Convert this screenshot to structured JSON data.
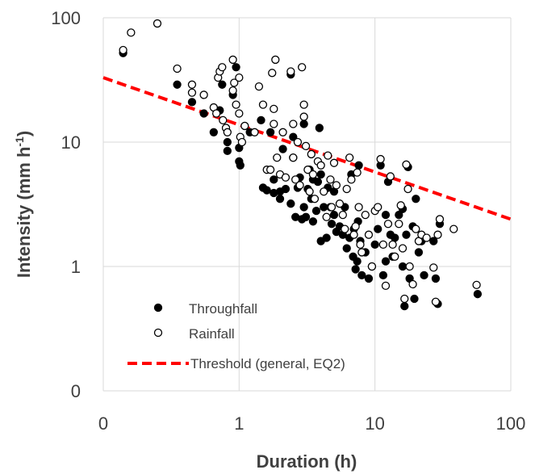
{
  "chart_data": {
    "type": "scatter",
    "xscale": "log",
    "yscale": "log",
    "xlim": [
      0.1,
      100
    ],
    "ylim": [
      0.1,
      100
    ],
    "xticks": [
      0.1,
      1,
      10,
      100
    ],
    "yticks": [
      0.1,
      1,
      10,
      100
    ],
    "xtick_labels": [
      "0",
      "1",
      "10",
      "100"
    ],
    "ytick_labels": [
      "0",
      "1",
      "10",
      "100"
    ],
    "xlabel": "Duration (h)",
    "ylabel": {
      "base": "Intensity (mm h",
      "sup": "-1",
      "end": ")"
    },
    "grid": "major, both axes",
    "legend_position": "lower-left",
    "colors": {
      "throughfall": "#000000",
      "rainfall_edge": "#000000",
      "rainfall_fill": "#ffffff",
      "threshold": "#ff0000",
      "grid": "#d9d9d9",
      "text": "#404040"
    },
    "series": [
      {
        "name": "Throughfall",
        "marker": "filled-circle",
        "points": [
          [
            0.14,
            52
          ],
          [
            0.35,
            29
          ],
          [
            0.45,
            21
          ],
          [
            0.55,
            17
          ],
          [
            0.65,
            12
          ],
          [
            0.72,
            18
          ],
          [
            0.75,
            29
          ],
          [
            0.82,
            8.5
          ],
          [
            0.82,
            10
          ],
          [
            0.9,
            24
          ],
          [
            0.95,
            40
          ],
          [
            1.0,
            9
          ],
          [
            1.0,
            7
          ],
          [
            1.02,
            6.5
          ],
          [
            1.2,
            12
          ],
          [
            1.45,
            15
          ],
          [
            1.5,
            4.3
          ],
          [
            1.6,
            4.1
          ],
          [
            1.7,
            12
          ],
          [
            1.8,
            5
          ],
          [
            1.8,
            3.9
          ],
          [
            2.0,
            3.5
          ],
          [
            2.0,
            4.0
          ],
          [
            2.1,
            8.8
          ],
          [
            2.2,
            4.2
          ],
          [
            2.4,
            3.2
          ],
          [
            2.4,
            35
          ],
          [
            2.5,
            11
          ],
          [
            2.5,
            7.5
          ],
          [
            2.6,
            2.5
          ],
          [
            2.7,
            4.3
          ],
          [
            2.8,
            5.2
          ],
          [
            2.9,
            2.4
          ],
          [
            3.0,
            3.0
          ],
          [
            3.0,
            14
          ],
          [
            3.1,
            2.5
          ],
          [
            3.2,
            4.2
          ],
          [
            3.3,
            6.0
          ],
          [
            3.4,
            3.5
          ],
          [
            3.5,
            2.3
          ],
          [
            3.5,
            5.0
          ],
          [
            3.7,
            2.8
          ],
          [
            3.8,
            4.8
          ],
          [
            3.9,
            13
          ],
          [
            4.0,
            1.6
          ],
          [
            4.0,
            5.5
          ],
          [
            4.2,
            3.0
          ],
          [
            4.4,
            1.7
          ],
          [
            4.5,
            4.3
          ],
          [
            4.7,
            3.0
          ],
          [
            4.8,
            2.2
          ],
          [
            5.0,
            2.6
          ],
          [
            5.0,
            4.0
          ],
          [
            5.2,
            1.9
          ],
          [
            5.5,
            2.1
          ],
          [
            5.8,
            1.8
          ],
          [
            6.0,
            3.0
          ],
          [
            6.2,
            1.4
          ],
          [
            6.5,
            1.7
          ],
          [
            6.7,
            5.5
          ],
          [
            6.9,
            1.2
          ],
          [
            7.0,
            2.0
          ],
          [
            7.2,
            0.95
          ],
          [
            7.4,
            1.1
          ],
          [
            7.5,
            2.3
          ],
          [
            7.6,
            6.5
          ],
          [
            7.8,
            1.6
          ],
          [
            8.0,
            0.85
          ],
          [
            8.5,
            1.3
          ],
          [
            9.0,
            0.8
          ],
          [
            9.5,
            1.0
          ],
          [
            10.0,
            1.5
          ],
          [
            10.5,
            2.0
          ],
          [
            11.0,
            6.5
          ],
          [
            11.5,
            0.85
          ],
          [
            12.0,
            1.1
          ],
          [
            12.0,
            2.6
          ],
          [
            12.5,
            4.8
          ],
          [
            13.0,
            1.8
          ],
          [
            13.5,
            1.2
          ],
          [
            14.0,
            1.7
          ],
          [
            15.0,
            2.6
          ],
          [
            16.0,
            1.0
          ],
          [
            16.0,
            2.9
          ],
          [
            16.5,
            0.48
          ],
          [
            17.0,
            1.8
          ],
          [
            17.5,
            6.3
          ],
          [
            18.0,
            0.8
          ],
          [
            19.0,
            2.1
          ],
          [
            19.5,
            0.55
          ],
          [
            20.0,
            3.5
          ],
          [
            21.0,
            1.3
          ],
          [
            22.0,
            1.6
          ],
          [
            23.0,
            0.85
          ],
          [
            27.0,
            1.6
          ],
          [
            28.0,
            0.8
          ],
          [
            29.0,
            0.5
          ],
          [
            30.0,
            2.2
          ],
          [
            57.0,
            0.6
          ]
        ]
      },
      {
        "name": "Rainfall",
        "marker": "open-circle",
        "points": [
          [
            0.14,
            55
          ],
          [
            0.16,
            76
          ],
          [
            0.25,
            90
          ],
          [
            0.35,
            39
          ],
          [
            0.45,
            29
          ],
          [
            0.45,
            25
          ],
          [
            0.55,
            24
          ],
          [
            0.65,
            19
          ],
          [
            0.68,
            17
          ],
          [
            0.7,
            33
          ],
          [
            0.72,
            37
          ],
          [
            0.75,
            40
          ],
          [
            0.76,
            15
          ],
          [
            0.8,
            13
          ],
          [
            0.82,
            12
          ],
          [
            0.9,
            46
          ],
          [
            0.9,
            26
          ],
          [
            0.92,
            30
          ],
          [
            0.95,
            20
          ],
          [
            1.0,
            33
          ],
          [
            1.0,
            17
          ],
          [
            1.02,
            11
          ],
          [
            1.05,
            10
          ],
          [
            1.1,
            13.5
          ],
          [
            1.3,
            12
          ],
          [
            1.4,
            28
          ],
          [
            1.5,
            20
          ],
          [
            1.6,
            6
          ],
          [
            1.7,
            6
          ],
          [
            1.75,
            36
          ],
          [
            1.8,
            14
          ],
          [
            1.8,
            18.5
          ],
          [
            1.85,
            46
          ],
          [
            1.9,
            7.5
          ],
          [
            2.0,
            5.5
          ],
          [
            2.1,
            12
          ],
          [
            2.2,
            5.2
          ],
          [
            2.4,
            37
          ],
          [
            2.5,
            14
          ],
          [
            2.5,
            7.5
          ],
          [
            2.6,
            5.0
          ],
          [
            2.7,
            10
          ],
          [
            2.8,
            4.5
          ],
          [
            2.9,
            40
          ],
          [
            3.0,
            16
          ],
          [
            3.0,
            20
          ],
          [
            3.1,
            9.3
          ],
          [
            3.2,
            6.0
          ],
          [
            3.3,
            4.0
          ],
          [
            3.4,
            8.0
          ],
          [
            3.5,
            5.5
          ],
          [
            3.6,
            3.5
          ],
          [
            3.8,
            7.0
          ],
          [
            4.0,
            6.5
          ],
          [
            4.2,
            4.0
          ],
          [
            4.4,
            2.5
          ],
          [
            4.5,
            7.8
          ],
          [
            4.7,
            5.0
          ],
          [
            4.8,
            3.0
          ],
          [
            5.0,
            6.8
          ],
          [
            5.2,
            4.5
          ],
          [
            5.5,
            3.2
          ],
          [
            5.8,
            2.6
          ],
          [
            6.0,
            2.0
          ],
          [
            6.2,
            4.2
          ],
          [
            6.5,
            7.5
          ],
          [
            6.7,
            5.0
          ],
          [
            7.0,
            1.8
          ],
          [
            7.2,
            2.1
          ],
          [
            7.4,
            5.7
          ],
          [
            7.6,
            3.0
          ],
          [
            7.8,
            1.5
          ],
          [
            8.0,
            1.3
          ],
          [
            8.5,
            2.6
          ],
          [
            9.0,
            1.8
          ],
          [
            9.5,
            1.0
          ],
          [
            10.0,
            2.8
          ],
          [
            10.5,
            3.0
          ],
          [
            11.0,
            7.3
          ],
          [
            11.5,
            1.5
          ],
          [
            12.0,
            0.7
          ],
          [
            12.5,
            2.2
          ],
          [
            13.0,
            5.3
          ],
          [
            13.5,
            1.5
          ],
          [
            14.0,
            1.2
          ],
          [
            15.0,
            2.2
          ],
          [
            15.5,
            3.1
          ],
          [
            16.0,
            1.4
          ],
          [
            16.5,
            0.55
          ],
          [
            17.0,
            6.6
          ],
          [
            17.5,
            4.2
          ],
          [
            18.0,
            1.0
          ],
          [
            19.0,
            0.72
          ],
          [
            20.0,
            2.0
          ],
          [
            21.0,
            1.6
          ],
          [
            22.0,
            1.8
          ],
          [
            24.0,
            1.7
          ],
          [
            27.0,
            0.98
          ],
          [
            28.0,
            0.52
          ],
          [
            29.0,
            1.8
          ],
          [
            30.0,
            2.4
          ],
          [
            38.0,
            2.0
          ],
          [
            56.0,
            0.71
          ]
        ]
      },
      {
        "name": "Threshold (general, EQ2)",
        "style": "dashed-line",
        "x": [
          0.1,
          100
        ],
        "y": [
          33,
          2.4
        ]
      }
    ]
  }
}
